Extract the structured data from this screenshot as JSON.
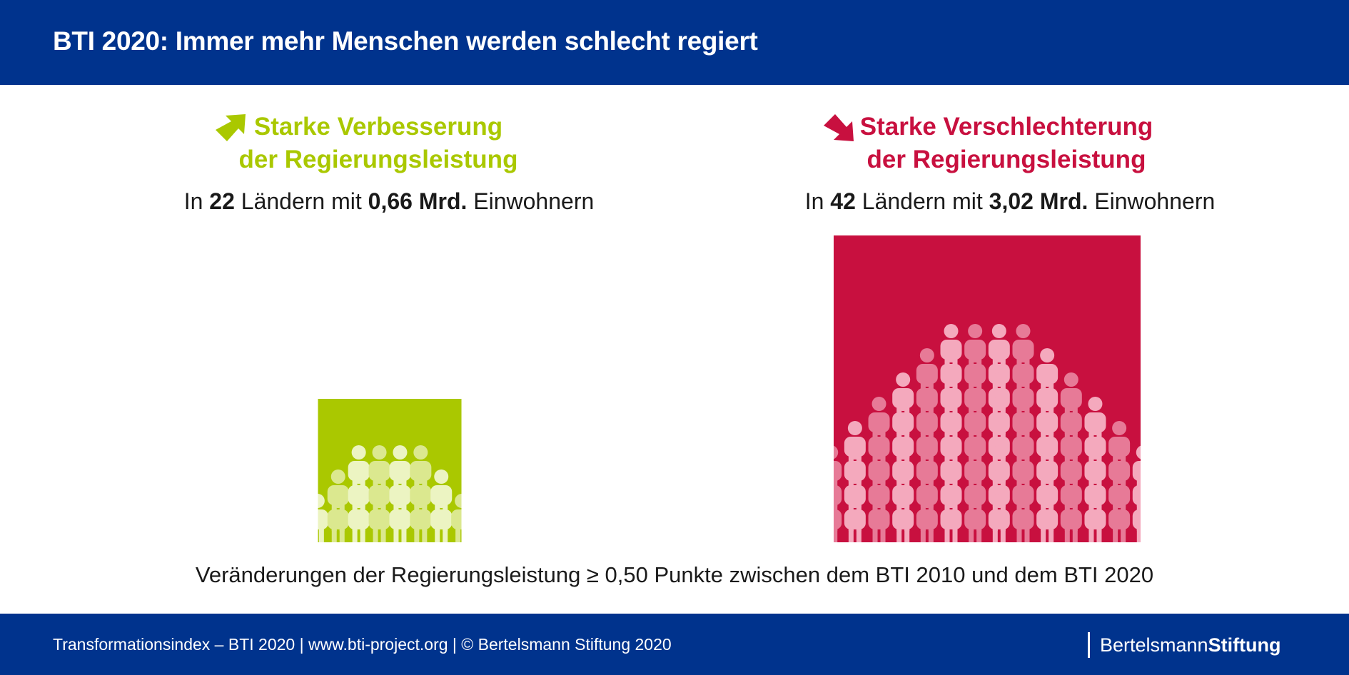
{
  "header": {
    "title": "BTI 2020: Immer mehr Menschen werden schlecht regiert"
  },
  "colors": {
    "brand_blue": "#00338d",
    "improvement": "#aac800",
    "decline": "#c8103f"
  },
  "chart_data": [
    {
      "type": "area",
      "title_line1": "Starke Verbesserung",
      "title_line2": "der Regierungsleistung",
      "subtitle_prefix": "In",
      "countries": "22",
      "subtitle_mid": "Ländern mit",
      "population": "0,66 Mrd.",
      "subtitle_suffix": "Einwohnern",
      "value_countries": 22,
      "value_population_bn": 0.66,
      "color": "#aac800",
      "icon": "arrow-up-right-icon"
    },
    {
      "type": "area",
      "title_line1": "Starke Verschlechterung",
      "title_line2": "der Regierungsleistung",
      "subtitle_prefix": "In",
      "countries": "42",
      "subtitle_mid": "Ländern mit",
      "population": "3,02 Mrd.",
      "subtitle_suffix": "Einwohnern",
      "value_countries": 42,
      "value_population_bn": 3.02,
      "color": "#c8103f",
      "icon": "arrow-down-right-icon"
    }
  ],
  "caption": "Veränderungen der Regierungsleistung ≥ 0,50 Punkte zwischen dem BTI 2010 und dem BTI 2020",
  "footer": {
    "text": "Transformationsindex – BTI 2020 | www.bti-project.org | © Bertelsmann Stiftung 2020",
    "brand_light": "Bertelsmann",
    "brand_bold": "Stiftung"
  }
}
